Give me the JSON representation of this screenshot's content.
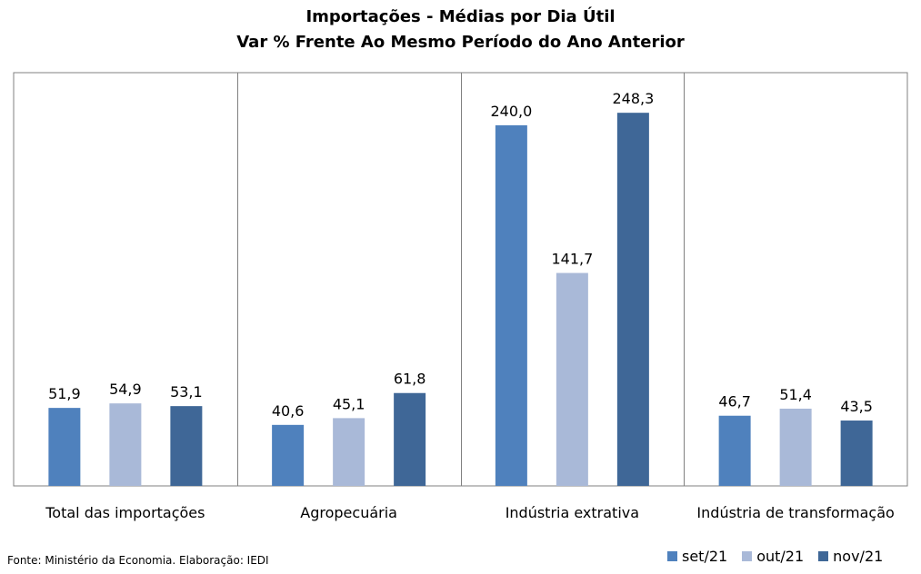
{
  "chart_data": {
    "type": "bar",
    "title": "Importações - Médias por Dia Útil",
    "subtitle": "Var % Frente Ao Mesmo Período do Ano Anterior",
    "categories": [
      "Total das importações",
      "Agropecuária",
      "Indústria extrativa",
      "Indústria de transformação"
    ],
    "series": [
      {
        "name": "set/21",
        "color": "#4F81BD",
        "values": [
          51.9,
          40.6,
          240.0,
          46.7
        ],
        "labels": [
          "51,9",
          "40,6",
          "240,0",
          "46,7"
        ]
      },
      {
        "name": "out/21",
        "color": "#A9B9D8",
        "values": [
          54.9,
          45.1,
          141.7,
          51.4
        ],
        "labels": [
          "54,9",
          "45,1",
          "141,7",
          "51,4"
        ]
      },
      {
        "name": "nov/21",
        "color": "#3F6797",
        "values": [
          53.1,
          61.8,
          248.3,
          43.5
        ],
        "labels": [
          "53,1",
          "61,8",
          "248,3",
          "43,5"
        ]
      }
    ],
    "ylim": [
      0,
      275
    ],
    "grid": false,
    "legend_position": "bottom-right"
  },
  "source": "Fonte: Ministério da Economia. Elaboração: IEDI"
}
